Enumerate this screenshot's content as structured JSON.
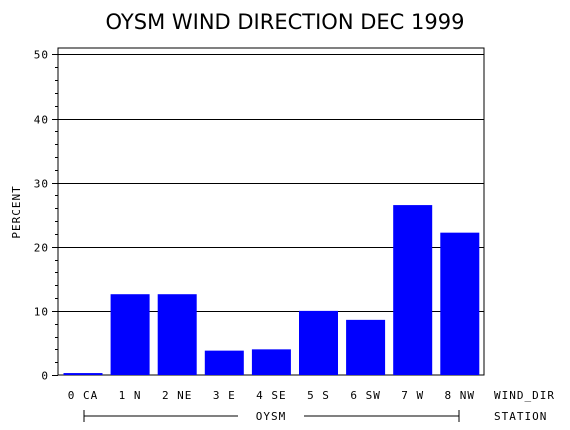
{
  "chart_data": {
    "type": "bar",
    "title": "OYSM WIND DIRECTION DEC 1999",
    "ylabel": "PERCENT",
    "xlabel": "WIND_DIR",
    "group_axis_label": "STATION",
    "group_label": "OYSM",
    "categories": [
      "0 CA",
      "1 N",
      "2 NE",
      "3 E",
      "4 SE",
      "5 S",
      "6 SW",
      "7 W",
      "8 NW"
    ],
    "values": [
      0.3,
      12.6,
      12.6,
      3.8,
      4.0,
      10.0,
      8.6,
      26.5,
      22.2
    ],
    "ylim": [
      0,
      51
    ],
    "yticks": [
      "0",
      "10",
      "20",
      "30",
      "40",
      "50"
    ],
    "ytick_values": [
      0,
      10,
      20,
      30,
      40,
      50
    ],
    "grid": true,
    "bar_color": "#0000ff"
  }
}
